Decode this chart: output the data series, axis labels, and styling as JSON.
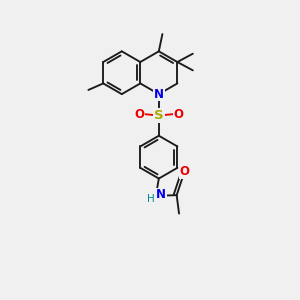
{
  "bg": "#f0f0f0",
  "bc": "#1a1a1a",
  "N_color": "#0000ee",
  "S_color": "#aaaa00",
  "O_color": "#ee0000",
  "NH_color": "#008888",
  "lw": 1.35,
  "r": 0.72,
  "xlim": [
    0,
    10
  ],
  "ylim": [
    0,
    10
  ]
}
